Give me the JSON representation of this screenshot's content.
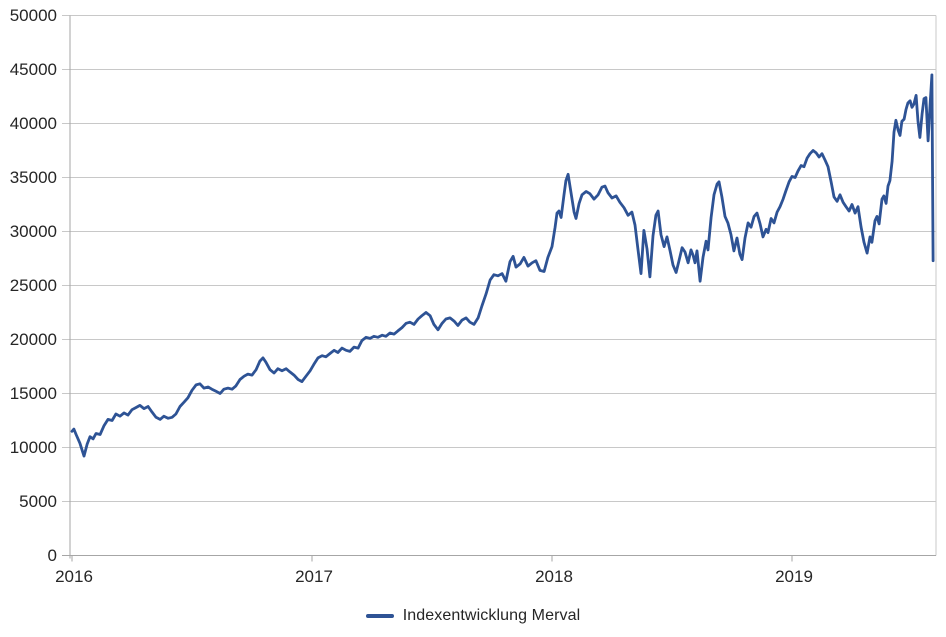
{
  "colors": {
    "line": "#2E5395",
    "grid": "#C8C8C8",
    "axis": "#A6A6A6",
    "text": "#262626",
    "background": "#FFFFFF"
  },
  "legend": {
    "label": "Indexentwicklung Merval"
  },
  "chart_data": {
    "type": "line",
    "title": "",
    "xlabel": "",
    "ylabel": "",
    "xlim": [
      2016.0,
      2019.6
    ],
    "ylim": [
      0,
      50000
    ],
    "grid": true,
    "legend_position": "bottom",
    "x_ticks": [
      {
        "value": 2016,
        "label": "2016"
      },
      {
        "value": 2017,
        "label": "2017"
      },
      {
        "value": 2018,
        "label": "2018"
      },
      {
        "value": 2019,
        "label": "2019"
      }
    ],
    "y_ticks": [
      {
        "value": 0,
        "label": "0"
      },
      {
        "value": 5000,
        "label": "5000"
      },
      {
        "value": 10000,
        "label": "10000"
      },
      {
        "value": 15000,
        "label": "15000"
      },
      {
        "value": 20000,
        "label": "20000"
      },
      {
        "value": 25000,
        "label": "25000"
      },
      {
        "value": 30000,
        "label": "30000"
      },
      {
        "value": 35000,
        "label": "35000"
      },
      {
        "value": 40000,
        "label": "40000"
      },
      {
        "value": 45000,
        "label": "45000"
      },
      {
        "value": 50000,
        "label": "50000"
      }
    ],
    "series": [
      {
        "name": "Indexentwicklung Merval",
        "color": "#2E5395",
        "points": [
          [
            2016.0,
            11500
          ],
          [
            2016.008,
            11700
          ],
          [
            2016.017,
            11200
          ],
          [
            2016.033,
            10400
          ],
          [
            2016.05,
            9200
          ],
          [
            2016.063,
            10300
          ],
          [
            2016.075,
            11000
          ],
          [
            2016.088,
            10800
          ],
          [
            2016.1,
            11300
          ],
          [
            2016.117,
            11200
          ],
          [
            2016.133,
            12000
          ],
          [
            2016.15,
            12600
          ],
          [
            2016.167,
            12500
          ],
          [
            2016.183,
            13100
          ],
          [
            2016.2,
            12900
          ],
          [
            2016.217,
            13200
          ],
          [
            2016.233,
            13000
          ],
          [
            2016.25,
            13500
          ],
          [
            2016.267,
            13700
          ],
          [
            2016.283,
            13900
          ],
          [
            2016.3,
            13600
          ],
          [
            2016.317,
            13800
          ],
          [
            2016.333,
            13300
          ],
          [
            2016.35,
            12800
          ],
          [
            2016.367,
            12600
          ],
          [
            2016.383,
            12900
          ],
          [
            2016.4,
            12700
          ],
          [
            2016.417,
            12800
          ],
          [
            2016.433,
            13100
          ],
          [
            2016.45,
            13800
          ],
          [
            2016.467,
            14200
          ],
          [
            2016.483,
            14600
          ],
          [
            2016.5,
            15300
          ],
          [
            2016.517,
            15800
          ],
          [
            2016.533,
            15900
          ],
          [
            2016.55,
            15500
          ],
          [
            2016.567,
            15600
          ],
          [
            2016.583,
            15400
          ],
          [
            2016.6,
            15200
          ],
          [
            2016.617,
            15000
          ],
          [
            2016.633,
            15400
          ],
          [
            2016.65,
            15500
          ],
          [
            2016.667,
            15400
          ],
          [
            2016.683,
            15700
          ],
          [
            2016.7,
            16300
          ],
          [
            2016.717,
            16600
          ],
          [
            2016.733,
            16800
          ],
          [
            2016.75,
            16700
          ],
          [
            2016.767,
            17200
          ],
          [
            2016.783,
            18000
          ],
          [
            2016.796,
            18300
          ],
          [
            2016.808,
            17900
          ],
          [
            2016.825,
            17200
          ],
          [
            2016.842,
            16900
          ],
          [
            2016.858,
            17300
          ],
          [
            2016.875,
            17100
          ],
          [
            2016.892,
            17300
          ],
          [
            2016.908,
            17000
          ],
          [
            2016.925,
            16700
          ],
          [
            2016.942,
            16300
          ],
          [
            2016.958,
            16100
          ],
          [
            2016.975,
            16600
          ],
          [
            2016.992,
            17100
          ],
          [
            2017.008,
            17700
          ],
          [
            2017.025,
            18300
          ],
          [
            2017.042,
            18500
          ],
          [
            2017.058,
            18400
          ],
          [
            2017.075,
            18700
          ],
          [
            2017.092,
            19000
          ],
          [
            2017.108,
            18800
          ],
          [
            2017.125,
            19200
          ],
          [
            2017.142,
            19000
          ],
          [
            2017.158,
            18900
          ],
          [
            2017.175,
            19300
          ],
          [
            2017.192,
            19200
          ],
          [
            2017.208,
            19900
          ],
          [
            2017.225,
            20200
          ],
          [
            2017.242,
            20100
          ],
          [
            2017.258,
            20300
          ],
          [
            2017.275,
            20200
          ],
          [
            2017.292,
            20400
          ],
          [
            2017.308,
            20300
          ],
          [
            2017.325,
            20600
          ],
          [
            2017.342,
            20500
          ],
          [
            2017.358,
            20800
          ],
          [
            2017.375,
            21100
          ],
          [
            2017.392,
            21500
          ],
          [
            2017.408,
            21600
          ],
          [
            2017.425,
            21400
          ],
          [
            2017.442,
            21900
          ],
          [
            2017.458,
            22200
          ],
          [
            2017.475,
            22500
          ],
          [
            2017.492,
            22200
          ],
          [
            2017.508,
            21400
          ],
          [
            2017.525,
            20900
          ],
          [
            2017.542,
            21500
          ],
          [
            2017.558,
            21900
          ],
          [
            2017.575,
            22000
          ],
          [
            2017.592,
            21700
          ],
          [
            2017.608,
            21300
          ],
          [
            2017.625,
            21800
          ],
          [
            2017.642,
            22000
          ],
          [
            2017.658,
            21600
          ],
          [
            2017.675,
            21400
          ],
          [
            2017.692,
            22000
          ],
          [
            2017.708,
            23100
          ],
          [
            2017.725,
            24200
          ],
          [
            2017.742,
            25500
          ],
          [
            2017.758,
            26000
          ],
          [
            2017.775,
            25900
          ],
          [
            2017.792,
            26100
          ],
          [
            2017.808,
            25400
          ],
          [
            2017.825,
            27200
          ],
          [
            2017.838,
            27700
          ],
          [
            2017.85,
            26700
          ],
          [
            2017.867,
            27000
          ],
          [
            2017.883,
            27600
          ],
          [
            2017.9,
            26800
          ],
          [
            2017.917,
            27100
          ],
          [
            2017.933,
            27300
          ],
          [
            2017.95,
            26400
          ],
          [
            2017.967,
            26300
          ],
          [
            2017.983,
            27600
          ],
          [
            2018.0,
            28600
          ],
          [
            2018.013,
            30400
          ],
          [
            2018.021,
            31700
          ],
          [
            2018.029,
            31900
          ],
          [
            2018.038,
            31300
          ],
          [
            2018.05,
            33400
          ],
          [
            2018.058,
            34700
          ],
          [
            2018.067,
            35300
          ],
          [
            2018.079,
            33600
          ],
          [
            2018.092,
            31800
          ],
          [
            2018.1,
            31200
          ],
          [
            2018.113,
            32600
          ],
          [
            2018.125,
            33400
          ],
          [
            2018.142,
            33700
          ],
          [
            2018.158,
            33500
          ],
          [
            2018.175,
            33000
          ],
          [
            2018.192,
            33400
          ],
          [
            2018.208,
            34100
          ],
          [
            2018.221,
            34200
          ],
          [
            2018.233,
            33600
          ],
          [
            2018.25,
            33100
          ],
          [
            2018.267,
            33300
          ],
          [
            2018.283,
            32700
          ],
          [
            2018.3,
            32200
          ],
          [
            2018.317,
            31500
          ],
          [
            2018.333,
            31800
          ],
          [
            2018.346,
            30600
          ],
          [
            2018.358,
            28400
          ],
          [
            2018.371,
            26100
          ],
          [
            2018.383,
            30100
          ],
          [
            2018.396,
            28400
          ],
          [
            2018.408,
            25800
          ],
          [
            2018.421,
            29600
          ],
          [
            2018.433,
            31500
          ],
          [
            2018.442,
            31900
          ],
          [
            2018.454,
            29700
          ],
          [
            2018.467,
            28600
          ],
          [
            2018.479,
            29500
          ],
          [
            2018.492,
            28200
          ],
          [
            2018.504,
            26900
          ],
          [
            2018.517,
            26200
          ],
          [
            2018.529,
            27300
          ],
          [
            2018.542,
            28500
          ],
          [
            2018.554,
            28100
          ],
          [
            2018.567,
            27100
          ],
          [
            2018.579,
            28300
          ],
          [
            2018.588,
            27800
          ],
          [
            2018.596,
            27100
          ],
          [
            2018.604,
            28200
          ],
          [
            2018.617,
            25400
          ],
          [
            2018.629,
            27600
          ],
          [
            2018.642,
            29100
          ],
          [
            2018.65,
            28300
          ],
          [
            2018.663,
            31300
          ],
          [
            2018.675,
            33400
          ],
          [
            2018.688,
            34400
          ],
          [
            2018.696,
            34600
          ],
          [
            2018.708,
            33200
          ],
          [
            2018.721,
            31400
          ],
          [
            2018.733,
            30800
          ],
          [
            2018.746,
            29700
          ],
          [
            2018.758,
            28200
          ],
          [
            2018.771,
            29400
          ],
          [
            2018.783,
            27900
          ],
          [
            2018.792,
            27400
          ],
          [
            2018.804,
            29400
          ],
          [
            2018.817,
            30800
          ],
          [
            2018.829,
            30400
          ],
          [
            2018.842,
            31400
          ],
          [
            2018.854,
            31700
          ],
          [
            2018.867,
            30700
          ],
          [
            2018.879,
            29500
          ],
          [
            2018.892,
            30200
          ],
          [
            2018.9,
            29900
          ],
          [
            2018.913,
            31200
          ],
          [
            2018.925,
            30800
          ],
          [
            2018.938,
            31800
          ],
          [
            2018.95,
            32300
          ],
          [
            2018.963,
            33000
          ],
          [
            2018.975,
            33800
          ],
          [
            2018.988,
            34600
          ],
          [
            2019.0,
            35100
          ],
          [
            2019.013,
            35000
          ],
          [
            2019.025,
            35600
          ],
          [
            2019.038,
            36100
          ],
          [
            2019.05,
            36000
          ],
          [
            2019.063,
            36800
          ],
          [
            2019.075,
            37200
          ],
          [
            2019.088,
            37500
          ],
          [
            2019.1,
            37300
          ],
          [
            2019.113,
            36900
          ],
          [
            2019.125,
            37200
          ],
          [
            2019.138,
            36600
          ],
          [
            2019.15,
            36000
          ],
          [
            2019.163,
            34600
          ],
          [
            2019.175,
            33200
          ],
          [
            2019.188,
            32800
          ],
          [
            2019.2,
            33400
          ],
          [
            2019.213,
            32700
          ],
          [
            2019.225,
            32300
          ],
          [
            2019.238,
            31900
          ],
          [
            2019.25,
            32500
          ],
          [
            2019.263,
            31700
          ],
          [
            2019.275,
            32300
          ],
          [
            2019.288,
            30400
          ],
          [
            2019.3,
            29000
          ],
          [
            2019.313,
            28000
          ],
          [
            2019.325,
            29500
          ],
          [
            2019.333,
            29000
          ],
          [
            2019.346,
            31000
          ],
          [
            2019.354,
            31400
          ],
          [
            2019.363,
            30700
          ],
          [
            2019.375,
            33000
          ],
          [
            2019.383,
            33300
          ],
          [
            2019.392,
            32600
          ],
          [
            2019.4,
            34200
          ],
          [
            2019.408,
            34700
          ],
          [
            2019.417,
            36500
          ],
          [
            2019.425,
            39200
          ],
          [
            2019.433,
            40300
          ],
          [
            2019.442,
            39400
          ],
          [
            2019.45,
            38900
          ],
          [
            2019.458,
            40200
          ],
          [
            2019.467,
            40400
          ],
          [
            2019.475,
            41300
          ],
          [
            2019.483,
            41900
          ],
          [
            2019.492,
            42100
          ],
          [
            2019.5,
            41500
          ],
          [
            2019.508,
            41800
          ],
          [
            2019.517,
            42600
          ],
          [
            2019.525,
            40200
          ],
          [
            2019.533,
            38700
          ],
          [
            2019.542,
            40900
          ],
          [
            2019.55,
            42300
          ],
          [
            2019.558,
            42400
          ],
          [
            2019.567,
            38400
          ],
          [
            2019.575,
            41600
          ],
          [
            2019.583,
            44500
          ],
          [
            2019.588,
            27300
          ]
        ]
      }
    ]
  }
}
